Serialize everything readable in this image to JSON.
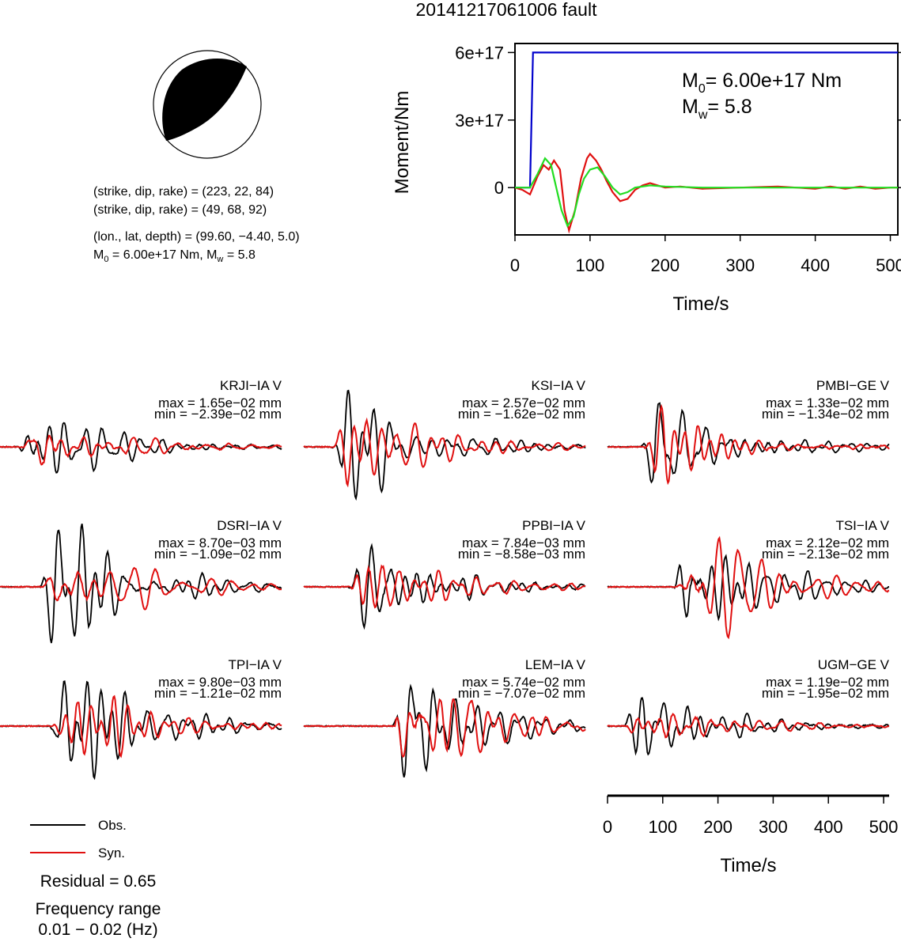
{
  "title": "20141217061006 fault",
  "mechanism": {
    "line1": "(strike, dip, rake) = (223, 22, 84)",
    "line2": "(strike, dip, rake) = (49, 68, 92)",
    "line3": "(lon., lat, depth) = (99.60, −4.40, 5.0)",
    "m0_text": "6.00e+17 Nm, M",
    "mw_text": " = 5.8"
  },
  "legend": {
    "obs_label": "Obs.",
    "syn_label": "Syn.",
    "residual": "Residual = 0.65",
    "freq_label": "Frequency range",
    "freq_range": "0.01 − 0.02 (Hz)"
  },
  "colors": {
    "obs": "#000000",
    "syn": "#e01010",
    "moment": "#0000cc",
    "stf_syn": "#e01010",
    "stf_obs": "#22dd22"
  },
  "chart_data": [
    {
      "type": "line",
      "name": "moment_rate",
      "xlabel": "Time/s",
      "ylabel": "Moment/Nm",
      "xlim": [
        0,
        510
      ],
      "xticks": [
        0,
        100,
        200,
        300,
        400,
        500
      ],
      "ytick_values": [
        0,
        3e+17,
        6e+17
      ],
      "ytick_labels": [
        "0",
        "3e+17",
        "6e+17"
      ],
      "ylim": [
        -2.1e+17,
        6.4e+17
      ],
      "annotation_m0": "= 6.00e+17 Nm",
      "annotation_mw": "= 5.8",
      "series": [
        {
          "color": "blue",
          "x": [
            0,
            20,
            24,
            510
          ],
          "y": [
            0,
            0,
            6e+17,
            6e+17
          ]
        },
        {
          "color": "red",
          "x": [
            0,
            10,
            20,
            30,
            38,
            45,
            52,
            60,
            66,
            72,
            80,
            88,
            96,
            100,
            108,
            115,
            122,
            130,
            140,
            150,
            160,
            170,
            180,
            190,
            200,
            220,
            250,
            300,
            350,
            400,
            420,
            440,
            460,
            480,
            500,
            510
          ],
          "y": [
            0,
            -1e+16,
            -3e+16,
            5e+16,
            1e+17,
            8e+16,
            1.2e+17,
            8e+16,
            -1e+17,
            -1.9e+17,
            -1e+17,
            4e+16,
            1.3e+17,
            1.5e+17,
            1.2e+17,
            8e+16,
            3e+16,
            -2e+16,
            -6e+16,
            -5e+16,
            -1e+16,
            1e+16,
            2e+16,
            1e+16,
            0,
            5000000000000000.0,
            -5000000000000000.0,
            0,
            5000000000000000.0,
            -5000000000000000.0,
            5000000000000000.0,
            -5000000000000000.0,
            5000000000000000.0,
            -5000000000000000.0,
            0,
            0
          ]
        },
        {
          "color": "green",
          "x": [
            0,
            20,
            30,
            40,
            48,
            55,
            62,
            70,
            78,
            85,
            92,
            100,
            110,
            120,
            130,
            140,
            150,
            160,
            180,
            200,
            250,
            300,
            350,
            400,
            450,
            510
          ],
          "y": [
            0,
            0,
            6e+16,
            1.3e+17,
            1e+17,
            0,
            -1e+17,
            -1.7e+17,
            -1.3e+17,
            -3e+16,
            4e+16,
            8e+16,
            9e+16,
            5e+16,
            0,
            -3e+16,
            -2e+16,
            0,
            1e+16,
            5000000000000000.0,
            0,
            0,
            0,
            0,
            0,
            0
          ]
        }
      ]
    },
    {
      "type": "line",
      "name": "waveforms",
      "xlabel": "Time/s",
      "xlim": [
        0,
        510
      ],
      "xticks": [
        0,
        100,
        200,
        300,
        400,
        500
      ],
      "stations": [
        {
          "label": "KRJI−IA V",
          "max": "max = 1.65e−02 mm",
          "min": "min = −2.39e−02 mm"
        },
        {
          "label": "KSI−IA V",
          "max": "max = 2.57e−02 mm",
          "min": "min = −1.62e−02 mm"
        },
        {
          "label": "PMBI−GE V",
          "max": "max = 1.33e−02 mm",
          "min": "min = −1.34e−02 mm"
        },
        {
          "label": "DSRI−IA V",
          "max": "max = 8.70e−03 mm",
          "min": "min = −1.09e−02 mm"
        },
        {
          "label": "PPBI−IA V",
          "max": "max = 7.84e−03 mm",
          "min": "min = −8.58e−03 mm"
        },
        {
          "label": "TSI−IA V",
          "max": "max = 2.12e−02 mm",
          "min": "min = −2.13e−02 mm"
        },
        {
          "label": "TPI−IA V",
          "max": "max = 9.80e−03 mm",
          "min": "min = −1.21e−02 mm"
        },
        {
          "label": "LEM−IA V",
          "max": "max = 5.74e−02 mm",
          "min": "min = −7.07e−02 mm"
        },
        {
          "label": "UGM−GE V",
          "max": "max = 1.19e−02 mm",
          "min": "min = −1.95e−02 mm"
        }
      ]
    }
  ]
}
